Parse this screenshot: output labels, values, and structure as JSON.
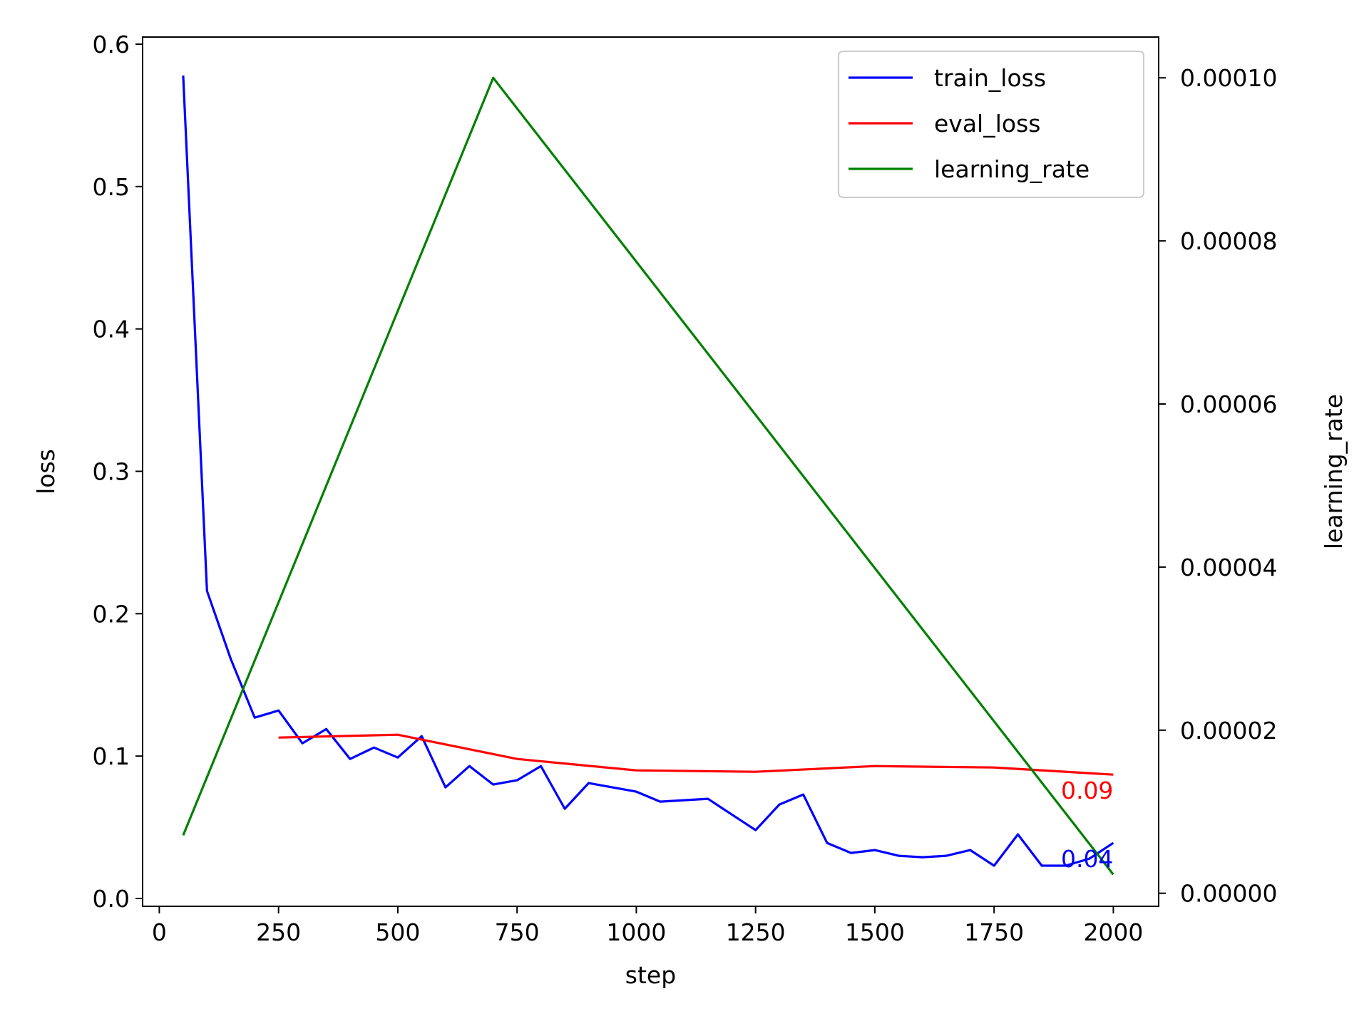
{
  "chart_data": {
    "type": "line",
    "xlabel": "step",
    "ylabel": "loss",
    "y2label": "learning_rate",
    "xlim": [
      -35,
      2095
    ],
    "ylim": [
      -0.0055,
      0.605
    ],
    "y2lim": [
      -1.6e-06,
      0.000105
    ],
    "x_ticks": [
      0,
      250,
      500,
      750,
      1000,
      1250,
      1500,
      1750,
      2000
    ],
    "x_tick_labels": [
      "0",
      "250",
      "500",
      "750",
      "1000",
      "1250",
      "1500",
      "1750",
      "2000"
    ],
    "y_ticks": [
      0.0,
      0.1,
      0.2,
      0.3,
      0.4,
      0.5,
      0.6
    ],
    "y_tick_labels": [
      "0.0",
      "0.1",
      "0.2",
      "0.3",
      "0.4",
      "0.5",
      "0.6"
    ],
    "y2_ticks": [
      0.0,
      2e-05,
      4e-05,
      6e-05,
      8e-05,
      0.0001
    ],
    "y2_tick_labels": [
      "0.00000",
      "0.00002",
      "0.00004",
      "0.00006",
      "0.00008",
      "0.00010"
    ],
    "grid": false,
    "legend_position": "top-right",
    "series": [
      {
        "name": "train_loss",
        "axis": "left",
        "color": "#0000ff",
        "x": [
          50,
          100,
          150,
          200,
          250,
          300,
          350,
          400,
          450,
          500,
          550,
          600,
          650,
          700,
          750,
          800,
          850,
          900,
          950,
          1000,
          1050,
          1100,
          1150,
          1200,
          1250,
          1300,
          1350,
          1400,
          1450,
          1500,
          1550,
          1600,
          1650,
          1700,
          1750,
          1800,
          1850,
          1900,
          1950,
          2000
        ],
        "y": [
          0.578,
          0.216,
          0.168,
          0.127,
          0.132,
          0.109,
          0.119,
          0.098,
          0.106,
          0.099,
          0.114,
          0.078,
          0.093,
          0.08,
          0.083,
          0.093,
          0.063,
          0.081,
          0.078,
          0.075,
          0.068,
          0.069,
          0.07,
          0.059,
          0.048,
          0.066,
          0.073,
          0.039,
          0.032,
          0.034,
          0.03,
          0.029,
          0.03,
          0.034,
          0.023,
          0.045,
          0.023,
          0.023,
          0.028,
          0.039
        ]
      },
      {
        "name": "eval_loss",
        "axis": "left",
        "color": "#ff0000",
        "x": [
          250,
          500,
          750,
          1000,
          1250,
          1500,
          1750,
          2000
        ],
        "y": [
          0.113,
          0.115,
          0.098,
          0.09,
          0.089,
          0.093,
          0.092,
          0.087
        ]
      },
      {
        "name": "learning_rate",
        "axis": "right",
        "color": "#008000",
        "x": [
          50,
          700,
          2000
        ],
        "y": [
          7.1e-06,
          0.0001,
          2.3e-06
        ]
      }
    ],
    "annotations": [
      {
        "text": "0.09",
        "x": 2000,
        "y": 0.087,
        "color": "#ff0000"
      },
      {
        "text": "0.04",
        "x": 2000,
        "y": 0.039,
        "color": "#0000ff"
      }
    ]
  }
}
